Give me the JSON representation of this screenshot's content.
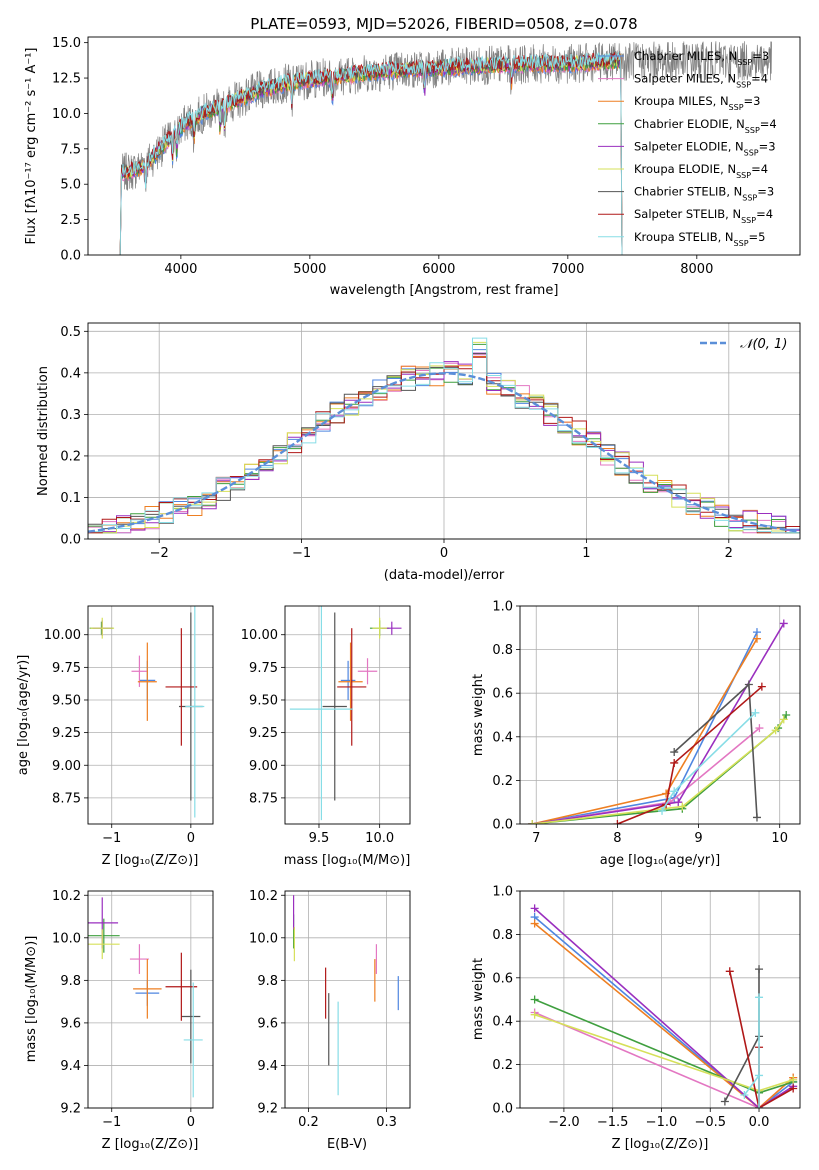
{
  "colors": {
    "Chabrier MILES": "#4f86e0",
    "Salpeter MILES": "#e377c2",
    "Kroupa MILES": "#ee7f22",
    "Chabrier ELODIE": "#3f9f3f",
    "Salpeter ELODIE": "#9a2fbf",
    "Kroupa ELODIE": "#d6e05a",
    "Chabrier STELIB": "#555555",
    "Salpeter STELIB": "#b01818",
    "Kroupa STELIB": "#87dde6",
    "data": "#808080",
    "gauss": "#5b8fd8"
  },
  "chart_data": [
    {
      "id": "spectrum",
      "type": "line",
      "title": "PLATE=0593, MJD=52026, FIBERID=0508, z=0.078",
      "xlabel": "wavelength [Angstrom, rest frame]",
      "ylabel": "Flux [fλ10⁻¹⁷ erg cm⁻² s⁻¹ A⁻¹]",
      "xlim": [
        3280,
        8800
      ],
      "ylim": [
        0,
        15.4
      ],
      "xticks": [
        "4000",
        "5000",
        "6000",
        "7000",
        "8000"
      ],
      "yticks": [
        "0.0",
        "2.5",
        "5.0",
        "7.5",
        "10.0",
        "12.5",
        "15.0"
      ],
      "legend": [
        "Chabrier MILES, N_SSP=3",
        "Salpeter MILES, N_SSP=4",
        "Kroupa MILES, N_SSP=3",
        "Chabrier ELODIE, N_SSP=4",
        "Salpeter ELODIE, N_SSP=3",
        "Kroupa ELODIE, N_SSP=4",
        "Chabrier STELIB, N_SSP=3",
        "Salpeter STELIB, N_SSP=4",
        "Kroupa STELIB, N_SSP=5"
      ],
      "legend_keys": [
        "Chabrier MILES",
        "Salpeter MILES",
        "Kroupa MILES",
        "Chabrier ELODIE",
        "Salpeter ELODIE",
        "Kroupa ELODIE",
        "Chabrier STELIB",
        "Salpeter STELIB",
        "Kroupa STELIB"
      ],
      "legend_loc": "right",
      "continuum": {
        "x": [
          3550,
          3650,
          3750,
          3850,
          3950,
          4050,
          4200,
          4400,
          4600,
          4800,
          5000,
          5300,
          5600,
          6000,
          6400,
          6800,
          7000,
          7200,
          7400
        ],
        "y": [
          5.8,
          6.0,
          6.6,
          7.6,
          8.6,
          9.4,
          10.1,
          10.8,
          11.6,
          12.1,
          12.4,
          12.7,
          13.0,
          13.2,
          13.4,
          13.5,
          13.5,
          13.6,
          13.7
        ]
      },
      "model_xrange": [
        3530,
        7420
      ],
      "data_xrange": [
        3540,
        8580
      ],
      "grid": false
    },
    {
      "id": "residuals",
      "type": "line",
      "xlabel": "(data-model)/error",
      "ylabel": "Normed distribution",
      "xlim": [
        -2.5,
        2.5
      ],
      "ylim": [
        0,
        0.52
      ],
      "xticks": [
        "−2",
        "−1",
        "0",
        "1",
        "2"
      ],
      "yticks": [
        "0.0",
        "0.1",
        "0.2",
        "0.3",
        "0.4",
        "0.5"
      ],
      "legend": [
        "𝒩(0, 1)"
      ],
      "legend_loc": "upper right",
      "bin_width": 0.1,
      "hist_range": [
        -2.5,
        2.5
      ],
      "grid": true
    },
    {
      "id": "age-vs-Z",
      "type": "scatter",
      "xlabel": "Z [log₁₀(Z/Z⊙)]",
      "ylabel": "age  [log₁₀(age/yr)]",
      "xlim": [
        -1.3,
        0.28
      ],
      "ylim": [
        8.55,
        10.22
      ],
      "xticks": [
        "−1",
        "0"
      ],
      "yticks": [
        "8.75",
        "9.00",
        "9.25",
        "9.50",
        "9.75",
        "10.00"
      ],
      "grid": true,
      "points": [
        {
          "model": "Chabrier MILES",
          "x": -0.55,
          "y": 9.65,
          "ex": 0.1,
          "ey": 0.15
        },
        {
          "model": "Salpeter MILES",
          "x": -0.65,
          "y": 9.72,
          "ex": 0.1,
          "ey": 0.12
        },
        {
          "model": "Kroupa MILES",
          "x": -0.55,
          "y": 9.64,
          "ex": 0.12,
          "ey": 0.3
        },
        {
          "model": "Chabrier ELODIE",
          "x": -1.13,
          "y": 10.05,
          "ex": 0.15,
          "ey": 0.05
        },
        {
          "model": "Salpeter ELODIE",
          "x": -1.12,
          "y": 10.05,
          "ex": 0.12,
          "ey": 0.06
        },
        {
          "model": "Kroupa ELODIE",
          "x": -1.12,
          "y": 10.05,
          "ex": 0.15,
          "ey": 0.08
        },
        {
          "model": "Chabrier STELIB",
          "x": 0.0,
          "y": 9.45,
          "ex": 0.15,
          "ey": 0.72
        },
        {
          "model": "Salpeter STELIB",
          "x": -0.12,
          "y": 9.6,
          "ex": 0.2,
          "ey": 0.45
        },
        {
          "model": "Kroupa STELIB",
          "x": 0.05,
          "y": 9.45,
          "ex": 0.12,
          "ey": 0.85
        }
      ]
    },
    {
      "id": "age-vs-mass",
      "type": "scatter",
      "xlabel": "mass [log₁₀(M/M⊙)]",
      "ylabel": "",
      "xlim": [
        9.22,
        10.25
      ],
      "ylim": [
        8.55,
        10.22
      ],
      "xticks": [
        "9.5",
        "10.0"
      ],
      "yticks": [
        "8.75",
        "9.00",
        "9.25",
        "9.50",
        "9.75",
        "10.00"
      ],
      "grid": true,
      "points": [
        {
          "model": "Chabrier MILES",
          "x": 9.74,
          "y": 9.65,
          "ex": 0.06,
          "ey": 0.15
        },
        {
          "model": "Salpeter MILES",
          "x": 9.9,
          "y": 9.72,
          "ex": 0.08,
          "ey": 0.1
        },
        {
          "model": "Kroupa MILES",
          "x": 9.76,
          "y": 9.64,
          "ex": 0.1,
          "ey": 0.3
        },
        {
          "model": "Chabrier ELODIE",
          "x": 10.0,
          "y": 10.05,
          "ex": 0.08,
          "ey": 0.06
        },
        {
          "model": "Salpeter ELODIE",
          "x": 10.1,
          "y": 10.05,
          "ex": 0.08,
          "ey": 0.05
        },
        {
          "model": "Kroupa ELODIE",
          "x": 10.0,
          "y": 10.05,
          "ex": 0.06,
          "ey": 0.08
        },
        {
          "model": "Chabrier STELIB",
          "x": 9.63,
          "y": 9.45,
          "ex": 0.1,
          "ey": 0.72
        },
        {
          "model": "Salpeter STELIB",
          "x": 9.77,
          "y": 9.6,
          "ex": 0.12,
          "ey": 0.45
        },
        {
          "model": "Kroupa STELIB",
          "x": 9.52,
          "y": 9.43,
          "ex": 0.26,
          "ey": 0.85
        }
      ]
    },
    {
      "id": "massweight-vs-age",
      "type": "line",
      "xlabel": "age  [log₁₀(age/yr)]",
      "ylabel": "mass weight",
      "xlim": [
        6.8,
        10.25
      ],
      "ylim": [
        0,
        1.0
      ],
      "xticks": [
        "7",
        "8",
        "9",
        "10"
      ],
      "yticks": [
        "0.0",
        "0.2",
        "0.4",
        "0.6",
        "0.8",
        "1.0"
      ],
      "grid": true,
      "series": [
        {
          "model": "Chabrier MILES",
          "x": [
            6.95,
            8.7,
            9.72
          ],
          "y": [
            0.0,
            0.12,
            0.88
          ]
        },
        {
          "model": "Salpeter MILES",
          "x": [
            6.95,
            8.65,
            9.75
          ],
          "y": [
            0.0,
            0.1,
            0.44
          ]
        },
        {
          "model": "Kroupa MILES",
          "x": [
            6.95,
            8.6,
            9.72
          ],
          "y": [
            0.0,
            0.14,
            0.85
          ]
        },
        {
          "model": "Chabrier ELODIE",
          "x": [
            6.95,
            8.8,
            9.98,
            10.08
          ],
          "y": [
            0.0,
            0.07,
            0.44,
            0.5
          ]
        },
        {
          "model": "Salpeter ELODIE",
          "x": [
            6.95,
            8.75,
            10.05
          ],
          "y": [
            0.0,
            0.1,
            0.92
          ]
        },
        {
          "model": "Kroupa ELODIE",
          "x": [
            6.95,
            8.8,
            9.95,
            10.05
          ],
          "y": [
            0.0,
            0.08,
            0.43,
            0.48
          ]
        },
        {
          "model": "Chabrier STELIB",
          "x": [
            8.7,
            9.62,
            9.72
          ],
          "y": [
            0.33,
            0.64,
            0.03
          ]
        },
        {
          "model": "Salpeter STELIB",
          "x": [
            8.0,
            8.6,
            8.7,
            9.78
          ],
          "y": [
            0.0,
            0.09,
            0.28,
            0.63
          ]
        },
        {
          "model": "Kroupa STELIB",
          "x": [
            8.55,
            8.7,
            9.7
          ],
          "y": [
            0.06,
            0.15,
            0.51
          ]
        }
      ]
    },
    {
      "id": "mass-vs-Z",
      "type": "scatter",
      "xlabel": "Z [log₁₀(Z/Z⊙)]",
      "ylabel": "mass [log₁₀(M/M⊙)]",
      "xlim": [
        -1.3,
        0.28
      ],
      "ylim": [
        9.2,
        10.22
      ],
      "xticks": [
        "−1",
        "0"
      ],
      "yticks": [
        "9.2",
        "9.4",
        "9.6",
        "9.8",
        "10.0",
        "10.2"
      ],
      "grid": true,
      "points": [
        {
          "model": "Chabrier MILES",
          "x": -0.55,
          "y": 9.74,
          "ex": 0.15,
          "ey": 0.06
        },
        {
          "model": "Salpeter MILES",
          "x": -0.65,
          "y": 9.9,
          "ex": 0.12,
          "ey": 0.07
        },
        {
          "model": "Kroupa MILES",
          "x": -0.55,
          "y": 9.76,
          "ex": 0.18,
          "ey": 0.14
        },
        {
          "model": "Chabrier ELODIE",
          "x": -1.1,
          "y": 10.01,
          "ex": 0.2,
          "ey": 0.08
        },
        {
          "model": "Salpeter ELODIE",
          "x": -1.12,
          "y": 10.07,
          "ex": 0.2,
          "ey": 0.12
        },
        {
          "model": "Kroupa ELODIE",
          "x": -1.12,
          "y": 9.97,
          "ex": 0.22,
          "ey": 0.07
        },
        {
          "model": "Chabrier STELIB",
          "x": 0.0,
          "y": 9.63,
          "ex": 0.12,
          "ey": 0.22
        },
        {
          "model": "Salpeter STELIB",
          "x": -0.12,
          "y": 9.77,
          "ex": 0.2,
          "ey": 0.16
        },
        {
          "model": "Kroupa STELIB",
          "x": 0.03,
          "y": 9.52,
          "ex": 0.12,
          "ey": 0.27
        }
      ]
    },
    {
      "id": "mass-vs-EBV",
      "type": "scatter",
      "xlabel": "E(B-V)",
      "ylabel": "",
      "xlim": [
        0.17,
        0.33
      ],
      "ylim": [
        9.2,
        10.22
      ],
      "xticks": [
        "0.2",
        "0.3"
      ],
      "yticks": [
        "9.2",
        "9.4",
        "9.6",
        "9.8",
        "10.0",
        "10.2"
      ],
      "grid": true,
      "points": [
        {
          "model": "Chabrier MILES",
          "x": 0.315,
          "y": 9.74,
          "ex": 0,
          "ey": 0.08
        },
        {
          "model": "Salpeter MILES",
          "x": 0.287,
          "y": 9.9,
          "ex": 0,
          "ey": 0.07
        },
        {
          "model": "Kroupa MILES",
          "x": 0.285,
          "y": 9.8,
          "ex": 0,
          "ey": 0.1
        },
        {
          "model": "Chabrier ELODIE",
          "x": 0.181,
          "y": 10.03,
          "ex": 0,
          "ey": 0.08
        },
        {
          "model": "Salpeter ELODIE",
          "x": 0.181,
          "y": 10.12,
          "ex": 0,
          "ey": 0.08
        },
        {
          "model": "Kroupa ELODIE",
          "x": 0.182,
          "y": 9.97,
          "ex": 0,
          "ey": 0.08
        },
        {
          "model": "Chabrier STELIB",
          "x": 0.226,
          "y": 9.57,
          "ex": 0,
          "ey": 0.17
        },
        {
          "model": "Salpeter STELIB",
          "x": 0.222,
          "y": 9.74,
          "ex": 0,
          "ey": 0.12
        },
        {
          "model": "Kroupa STELIB",
          "x": 0.238,
          "y": 9.48,
          "ex": 0,
          "ey": 0.22
        }
      ]
    },
    {
      "id": "massweight-vs-Z",
      "type": "line",
      "xlabel": "Z [log₁₀(Z/Z⊙)]",
      "ylabel": "mass weight",
      "xlim": [
        -2.45,
        0.42
      ],
      "ylim": [
        0,
        1.0
      ],
      "xticks": [
        "−2.0",
        "−1.5",
        "−1.0",
        "−0.5",
        "0.0"
      ],
      "yticks": [
        "0.0",
        "0.2",
        "0.4",
        "0.6",
        "0.8",
        "1.0"
      ],
      "grid": true,
      "series": [
        {
          "model": "Chabrier MILES",
          "x": [
            -2.3,
            0.0,
            0.35
          ],
          "y": [
            0.88,
            0.0,
            0.12
          ]
        },
        {
          "model": "Salpeter MILES",
          "x": [
            -2.3,
            0.0,
            0.35
          ],
          "y": [
            0.44,
            0.0,
            0.14
          ]
        },
        {
          "model": "Kroupa MILES",
          "x": [
            -2.3,
            0.0,
            0.35
          ],
          "y": [
            0.85,
            0.0,
            0.14
          ]
        },
        {
          "model": "Chabrier ELODIE",
          "x": [
            -2.3,
            0.0,
            0.35
          ],
          "y": [
            0.5,
            0.07,
            0.12
          ]
        },
        {
          "model": "Salpeter ELODIE",
          "x": [
            -2.3,
            0.0,
            0.35
          ],
          "y": [
            0.92,
            0.0,
            0.1
          ]
        },
        {
          "model": "Kroupa ELODIE",
          "x": [
            -2.3,
            0.0,
            0.35
          ],
          "y": [
            0.43,
            0.08,
            0.13
          ]
        },
        {
          "model": "Chabrier STELIB",
          "x": [
            -0.35,
            0.0,
            0.0
          ],
          "y": [
            0.03,
            0.33,
            0.64
          ]
        },
        {
          "model": "Salpeter STELIB",
          "x": [
            -0.3,
            0.0,
            0.35,
            0.0,
            0.0
          ],
          "y": [
            0.63,
            0.0,
            0.09,
            0.0,
            0.28
          ]
        },
        {
          "model": "Kroupa STELIB",
          "x": [
            -0.15,
            0.0,
            0.0,
            0.0
          ],
          "y": [
            0.06,
            0.15,
            0.51,
            0.0
          ]
        }
      ]
    }
  ]
}
